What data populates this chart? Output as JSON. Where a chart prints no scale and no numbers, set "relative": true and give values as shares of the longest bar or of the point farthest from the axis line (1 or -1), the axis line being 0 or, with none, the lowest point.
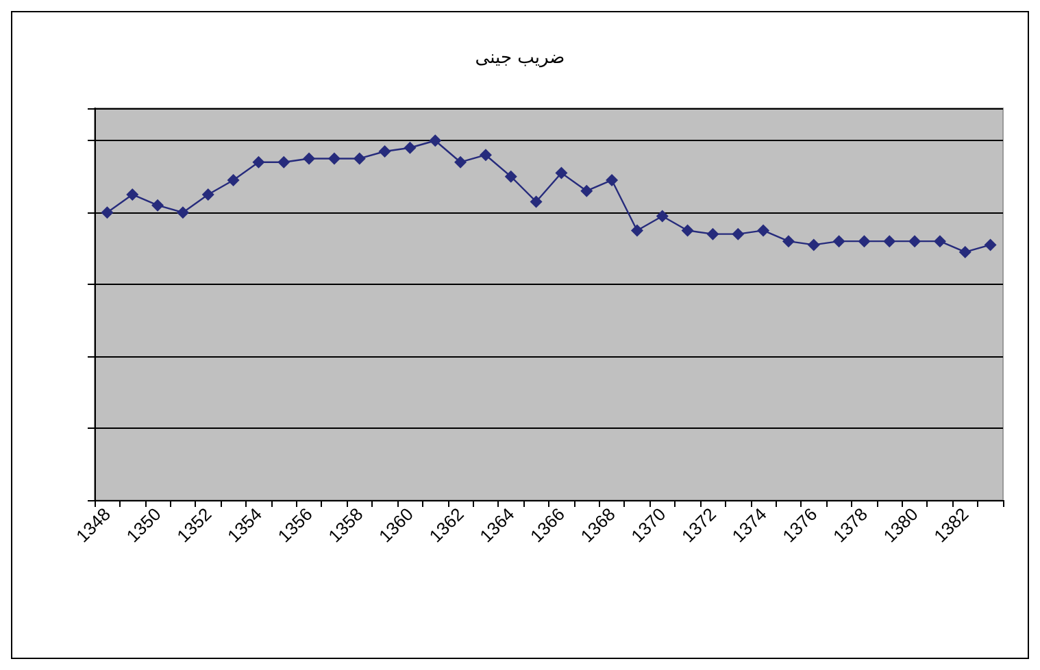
{
  "chart_data": {
    "type": "line",
    "title": "ضریب جینی",
    "relative": true,
    "grid": "y",
    "marker": "diamond",
    "line_style": "solid",
    "categories": [
      "1348",
      null,
      "1350",
      null,
      "1352",
      null,
      "1354",
      null,
      "1356",
      null,
      "1358",
      null,
      "1360",
      null,
      "1362",
      null,
      "1364",
      null,
      "1366",
      null,
      "1368",
      null,
      "1370",
      null,
      "1372",
      null,
      "1374",
      null,
      "1376",
      null,
      "1378",
      null,
      "1380",
      null,
      "1382",
      null
    ],
    "series": [
      {
        "color": "#262b7c",
        "values": [
          0.8,
          0.85,
          0.82,
          0.8,
          0.85,
          0.89,
          0.94,
          0.94,
          0.95,
          0.95,
          0.95,
          0.97,
          0.98,
          1,
          0.94,
          0.96,
          0.9,
          0.83,
          0.91,
          0.86,
          0.89,
          0.75,
          0.79,
          0.75,
          0.74,
          0.74,
          0.75,
          0.72,
          0.71,
          0.72,
          0.72,
          0.72,
          0.72,
          0.72,
          0.69,
          0.71
        ]
      }
    ]
  }
}
